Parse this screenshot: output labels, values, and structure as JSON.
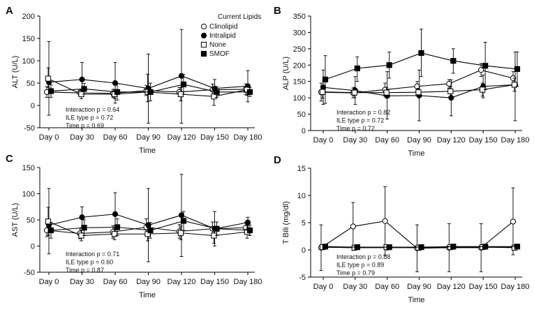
{
  "legend": {
    "title": "Current Lipids",
    "entries": [
      {
        "name": "Clinolipid",
        "marker": "circle-open"
      },
      {
        "name": "Intralipid",
        "marker": "circle-filled"
      },
      {
        "name": "None",
        "marker": "square-open"
      },
      {
        "name": "SMOF",
        "marker": "square-filled"
      }
    ]
  },
  "chart_data": [
    {
      "type": "line",
      "panel": "A",
      "xlabel": "Time",
      "ylabel": "ALT (U/L)",
      "categories": [
        "Day 0",
        "Day 30",
        "Day 60",
        "Day 90",
        "Day 120",
        "Day 150",
        "Day 180"
      ],
      "ylim": [
        -50,
        200
      ],
      "yticks": [
        -50,
        0,
        50,
        100,
        150,
        200
      ],
      "stats": [
        "Interaction p = 0.64",
        "ILE type p = 0.72",
        "Time p = 0.69"
      ],
      "series": [
        {
          "name": "Clinolipid",
          "values": [
            30,
            28,
            27,
            33,
            30,
            35,
            36
          ],
          "err_low": [
            18,
            22,
            18,
            22,
            20,
            22,
            24
          ],
          "err_high": [
            42,
            34,
            36,
            45,
            40,
            48,
            48
          ]
        },
        {
          "name": "Intralipid",
          "values": [
            52,
            58,
            50,
            38,
            66,
            38,
            43
          ],
          "err_low": [
            -22,
            20,
            5,
            -40,
            -40,
            18,
            8
          ],
          "err_high": [
            143,
            96,
            96,
            115,
            170,
            58,
            78
          ]
        },
        {
          "name": "None",
          "values": [
            60,
            25,
            25,
            30,
            25,
            20,
            35
          ],
          "err_low": [
            40,
            15,
            15,
            8,
            10,
            0,
            22
          ],
          "err_high": [
            84,
            35,
            35,
            70,
            40,
            35,
            48
          ]
        },
        {
          "name": "SMOF",
          "values": [
            32,
            37,
            30,
            30,
            47,
            30,
            30
          ],
          "err_low": [
            18,
            25,
            12,
            10,
            25,
            18,
            20
          ],
          "err_high": [
            46,
            49,
            48,
            50,
            69,
            42,
            40
          ]
        }
      ]
    },
    {
      "type": "line",
      "panel": "B",
      "xlabel": "Time",
      "ylabel": "ALP (U/L)",
      "categories": [
        "Day 0",
        "Day 30",
        "Day 60",
        "Day 90",
        "Day 120",
        "Day 150",
        "Day 180"
      ],
      "ylim": [
        0,
        350
      ],
      "yticks": [
        0,
        50,
        100,
        150,
        200,
        250,
        300,
        350
      ],
      "stats": [
        "Interaction p = 0.82",
        "ILE type p = 0.72",
        "Time p = 0.72"
      ],
      "series": [
        {
          "name": "Clinolipid",
          "values": [
            117,
            115,
            125,
            135,
            143,
            185,
            160
          ],
          "err_low": [
            90,
            100,
            105,
            120,
            130,
            165,
            140
          ],
          "err_high": [
            145,
            130,
            145,
            150,
            156,
            205,
            180
          ]
        },
        {
          "name": "Intralipid",
          "values": [
            132,
            122,
            106,
            107,
            100,
            135,
            140
          ],
          "err_low": [
            80,
            80,
            35,
            30,
            45,
            100,
            30
          ],
          "err_high": [
            185,
            165,
            180,
            185,
            155,
            170,
            240
          ]
        },
        {
          "name": "None",
          "values": [
            118,
            116,
            116,
            117,
            120,
            125,
            140
          ],
          "err_low": [
            98,
            100,
            100,
            105,
            105,
            105,
            120
          ],
          "err_high": [
            138,
            132,
            132,
            129,
            135,
            145,
            160
          ]
        },
        {
          "name": "SMOF",
          "values": [
            156,
            190,
            200,
            237,
            213,
            198,
            188
          ],
          "err_low": [
            83,
            150,
            160,
            165,
            175,
            125,
            135
          ],
          "err_high": [
            229,
            225,
            240,
            310,
            250,
            270,
            240
          ]
        }
      ]
    },
    {
      "type": "line",
      "panel": "C",
      "xlabel": "Time",
      "ylabel": "AST (U/L)",
      "categories": [
        "Day 0",
        "Day 30",
        "Day 60",
        "Day 90",
        "Day 120",
        "Day 150",
        "Day 180"
      ],
      "ylim": [
        -50,
        150
      ],
      "yticks": [
        -50,
        0,
        50,
        100,
        150
      ],
      "stats": [
        "Interaction p = 0.71",
        "ILE type p = 0.60",
        "Time p = 0.87"
      ],
      "series": [
        {
          "name": "Clinolipid",
          "values": [
            30,
            24,
            27,
            36,
            28,
            33,
            35
          ],
          "err_low": [
            18,
            14,
            15,
            20,
            15,
            20,
            25
          ],
          "err_high": [
            42,
            34,
            39,
            52,
            41,
            46,
            45
          ]
        },
        {
          "name": "Intralipid",
          "values": [
            40,
            55,
            61,
            40,
            59,
            33,
            45
          ],
          "err_low": [
            -15,
            35,
            20,
            -30,
            -20,
            0,
            35
          ],
          "err_high": [
            110,
            75,
            102,
            110,
            137,
            66,
            55
          ]
        },
        {
          "name": "None",
          "values": [
            47,
            20,
            23,
            23,
            25,
            20,
            27
          ],
          "err_low": [
            20,
            10,
            12,
            10,
            12,
            5,
            15
          ],
          "err_high": [
            74,
            30,
            34,
            36,
            38,
            35,
            39
          ]
        },
        {
          "name": "SMOF",
          "values": [
            30,
            35,
            36,
            30,
            48,
            33,
            30
          ],
          "err_low": [
            15,
            20,
            20,
            15,
            30,
            20,
            20
          ],
          "err_high": [
            45,
            50,
            52,
            45,
            66,
            46,
            40
          ]
        }
      ]
    },
    {
      "type": "line",
      "panel": "D",
      "xlabel": "Time",
      "ylabel": "T Bili (mg/dl)",
      "categories": [
        "Day 0",
        "Day 30",
        "Day 60",
        "Day 90",
        "Day 120",
        "Day 150",
        "Day 180"
      ],
      "ylim": [
        -5,
        15
      ],
      "yticks": [
        -5,
        0,
        5,
        10,
        15
      ],
      "stats": [
        "Interaction p = 0.88",
        "ILE type p = 0.89",
        "Time p = 0.79"
      ],
      "series": [
        {
          "name": "Clinolipid",
          "values": [
            0.4,
            4.3,
            5.3,
            0.3,
            0.4,
            0.4,
            5.2
          ],
          "err_low": [
            -3.8,
            -0.1,
            -1.0,
            -4.0,
            -4.0,
            -4.0,
            -0.9
          ],
          "err_high": [
            4.6,
            8.7,
            11.6,
            4.6,
            4.8,
            4.8,
            11.4
          ]
        },
        {
          "name": "Intralipid",
          "values": [
            0.5,
            0.4,
            0.4,
            0.4,
            0.5,
            0.5,
            0.5
          ],
          "err_low": [
            0.2,
            0.1,
            0.1,
            0.1,
            0.2,
            0.2,
            0.2
          ],
          "err_high": [
            0.8,
            0.7,
            0.7,
            0.7,
            0.8,
            0.8,
            0.8
          ]
        },
        {
          "name": "None",
          "values": [
            0.5,
            0.4,
            0.5,
            0.4,
            0.5,
            0.5,
            0.4
          ],
          "err_low": [
            0.2,
            0.1,
            0.2,
            0.1,
            0.2,
            0.2,
            0.1
          ],
          "err_high": [
            0.8,
            0.7,
            0.8,
            0.7,
            0.8,
            0.8,
            0.7
          ]
        },
        {
          "name": "SMOF",
          "values": [
            0.6,
            0.5,
            0.5,
            0.5,
            0.6,
            0.6,
            0.6
          ],
          "err_low": [
            0.3,
            0.2,
            0.2,
            0.2,
            0.3,
            0.3,
            0.3
          ],
          "err_high": [
            0.9,
            0.8,
            0.8,
            0.8,
            0.9,
            0.9,
            0.9
          ]
        }
      ]
    }
  ]
}
